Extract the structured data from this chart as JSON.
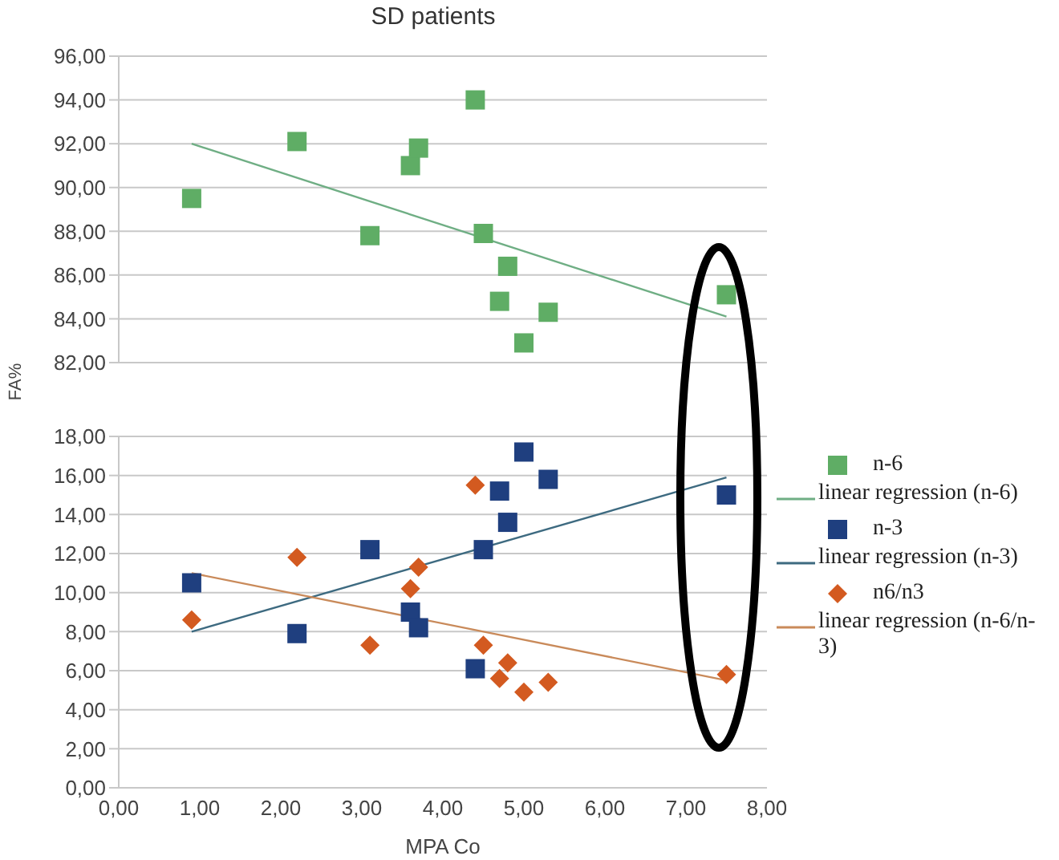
{
  "chart_data": [
    {
      "type": "scatter",
      "title": "SD patients",
      "grid": "y",
      "tick_labels": "y",
      "legend": "right",
      "xlim": [
        0,
        8
      ],
      "ylim": [
        82,
        96
      ],
      "yticks": [
        {
          "value": 82,
          "label": "82,00"
        },
        {
          "value": 84,
          "label": "84,00"
        },
        {
          "value": 86,
          "label": "86,00"
        },
        {
          "value": 88,
          "label": "88,00"
        },
        {
          "value": 90,
          "label": "90,00"
        },
        {
          "value": 92,
          "label": "92,00"
        },
        {
          "value": 94,
          "label": "94,00"
        },
        {
          "value": 96,
          "label": "96,00"
        }
      ],
      "series": [
        {
          "name": "n-6",
          "marker": "square",
          "color": "#5fad65",
          "x": [
            0.9,
            2.2,
            3.1,
            3.6,
            3.7,
            4.4,
            4.5,
            4.7,
            4.8,
            5.0,
            5.3,
            7.5
          ],
          "values": [
            89.5,
            92.1,
            87.8,
            91.0,
            91.8,
            94.0,
            87.9,
            84.8,
            86.4,
            82.9,
            84.3,
            85.1
          ]
        },
        {
          "name": "linear regression (n-6)",
          "type": "line",
          "marker": "none",
          "line_style": "solid",
          "color": "#6fae84",
          "x": [
            0.9,
            7.5
          ],
          "values": [
            92.0,
            84.1
          ]
        }
      ]
    },
    {
      "type": "scatter",
      "xlabel": "MPA Co",
      "ylabel": "FA%",
      "grid": "y",
      "legend": "right",
      "xlim": [
        0,
        8
      ],
      "xticks": [
        {
          "value": 0,
          "label": "0,00"
        },
        {
          "value": 1,
          "label": "1,00"
        },
        {
          "value": 2,
          "label": "2,00"
        },
        {
          "value": 3,
          "label": "3,00"
        },
        {
          "value": 4,
          "label": "4,00"
        },
        {
          "value": 5,
          "label": "5,00"
        },
        {
          "value": 6,
          "label": "6,00"
        },
        {
          "value": 7,
          "label": "7,00"
        },
        {
          "value": 8,
          "label": "8,00"
        }
      ],
      "ylim": [
        0,
        18
      ],
      "yticks": [
        {
          "value": 0,
          "label": "0,00"
        },
        {
          "value": 2,
          "label": "2,00"
        },
        {
          "value": 4,
          "label": "4,00"
        },
        {
          "value": 6,
          "label": "6,00"
        },
        {
          "value": 8,
          "label": "8,00"
        },
        {
          "value": 10,
          "label": "10,00"
        },
        {
          "value": 12,
          "label": "12,00"
        },
        {
          "value": 14,
          "label": "14,00"
        },
        {
          "value": 16,
          "label": "16,00"
        },
        {
          "value": 18,
          "label": "18,00"
        }
      ],
      "series": [
        {
          "name": "n-3",
          "marker": "square",
          "color": "#1f3f7f",
          "x": [
            0.9,
            2.2,
            3.1,
            3.6,
            3.7,
            4.4,
            4.5,
            4.7,
            4.8,
            5.0,
            5.3,
            7.5
          ],
          "values": [
            10.5,
            7.9,
            12.2,
            9.0,
            8.2,
            6.1,
            12.2,
            15.2,
            13.6,
            17.2,
            15.8,
            15.0
          ]
        },
        {
          "name": "linear regression (n-3)",
          "type": "line",
          "marker": "none",
          "line_style": "solid",
          "color": "#3d6a80",
          "x": [
            0.9,
            7.5
          ],
          "values": [
            8.0,
            15.9
          ]
        },
        {
          "name": "n6/n3",
          "marker": "diamond",
          "color": "#d35a20",
          "x": [
            0.9,
            2.2,
            3.1,
            3.6,
            3.7,
            4.4,
            4.5,
            4.7,
            4.8,
            5.0,
            5.3,
            7.5
          ],
          "values": [
            8.6,
            11.8,
            7.3,
            10.2,
            11.3,
            15.5,
            7.3,
            5.6,
            6.4,
            4.9,
            5.4,
            5.8
          ]
        },
        {
          "name": "linear regression (n-6/n-3)",
          "type": "line",
          "marker": "none",
          "line_style": "solid",
          "color": "#c98a5a",
          "x": [
            0.9,
            7.5
          ],
          "values": [
            11.0,
            5.5
          ]
        }
      ]
    }
  ]
}
